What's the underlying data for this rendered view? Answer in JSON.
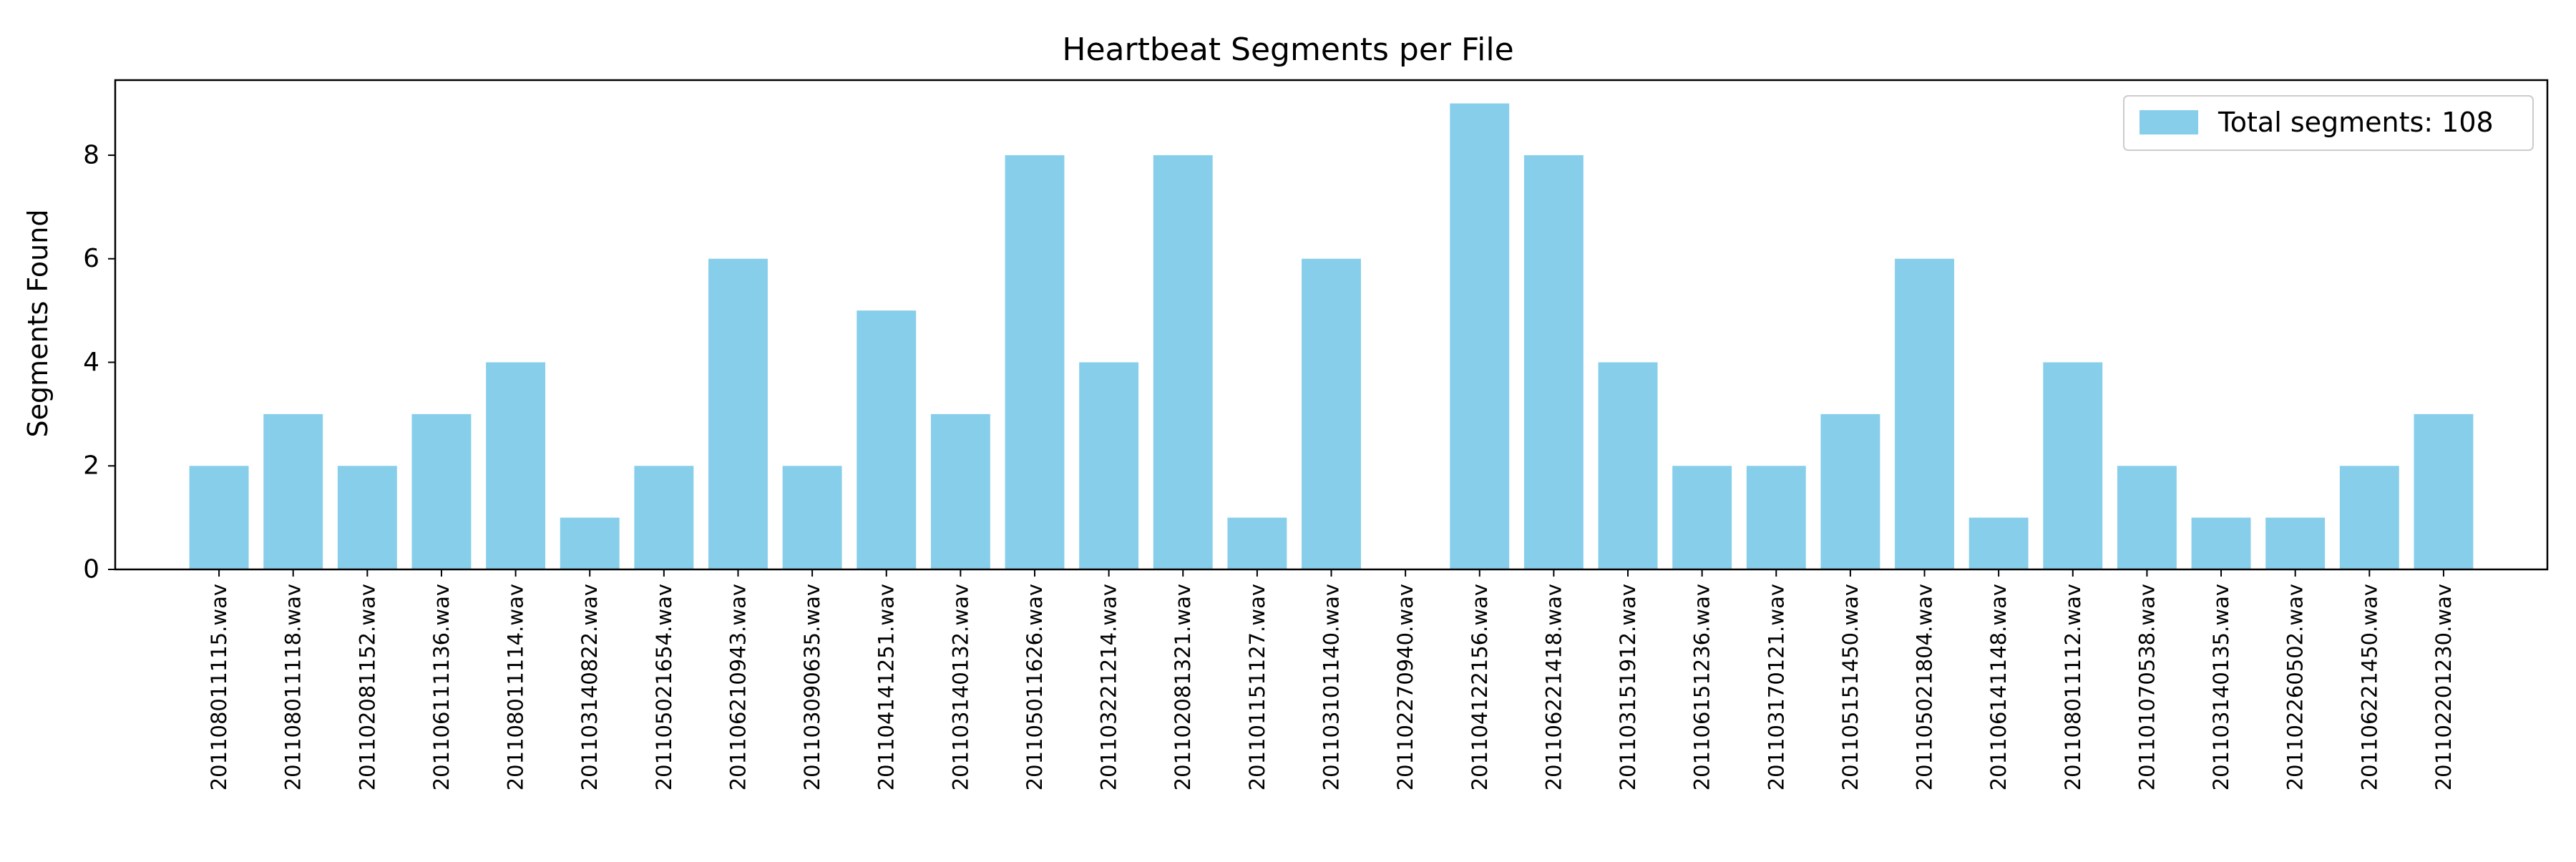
{
  "chart_data": {
    "type": "bar",
    "title": "Heartbeat Segments per File",
    "xlabel": "",
    "ylabel": "Segments Found",
    "categories": [
      "201108011115.wav",
      "201108011118.wav",
      "201102081152.wav",
      "201106111136.wav",
      "201108011114.wav",
      "201103140822.wav",
      "201105021654.wav",
      "201106210943.wav",
      "201103090635.wav",
      "201104141251.wav",
      "201103140132.wav",
      "201105011626.wav",
      "201103221214.wav",
      "201102081321.wav",
      "201101151127.wav",
      "201103101140.wav",
      "201102270940.wav",
      "201104122156.wav",
      "201106221418.wav",
      "201103151912.wav",
      "201106151236.wav",
      "201103170121.wav",
      "201105151450.wav",
      "201105021804.wav",
      "201106141148.wav",
      "201108011112.wav",
      "201101070538.wav",
      "201103140135.wav",
      "201102260502.wav",
      "201106221450.wav",
      "201102201230.wav"
    ],
    "values": [
      2,
      3,
      2,
      3,
      4,
      1,
      2,
      6,
      2,
      5,
      3,
      8,
      4,
      8,
      1,
      6,
      0,
      9,
      8,
      4,
      2,
      2,
      3,
      6,
      1,
      4,
      2,
      1,
      1,
      2,
      3
    ],
    "ylim": [
      0,
      9.45
    ],
    "yticks": [
      0,
      2,
      4,
      6,
      8
    ],
    "legend": {
      "label": "Total segments: 108",
      "position": "upper right"
    },
    "grid": false,
    "colors": {
      "bar": "#87ceeb",
      "legend_border": "#cccccc",
      "axis": "#000000"
    }
  }
}
